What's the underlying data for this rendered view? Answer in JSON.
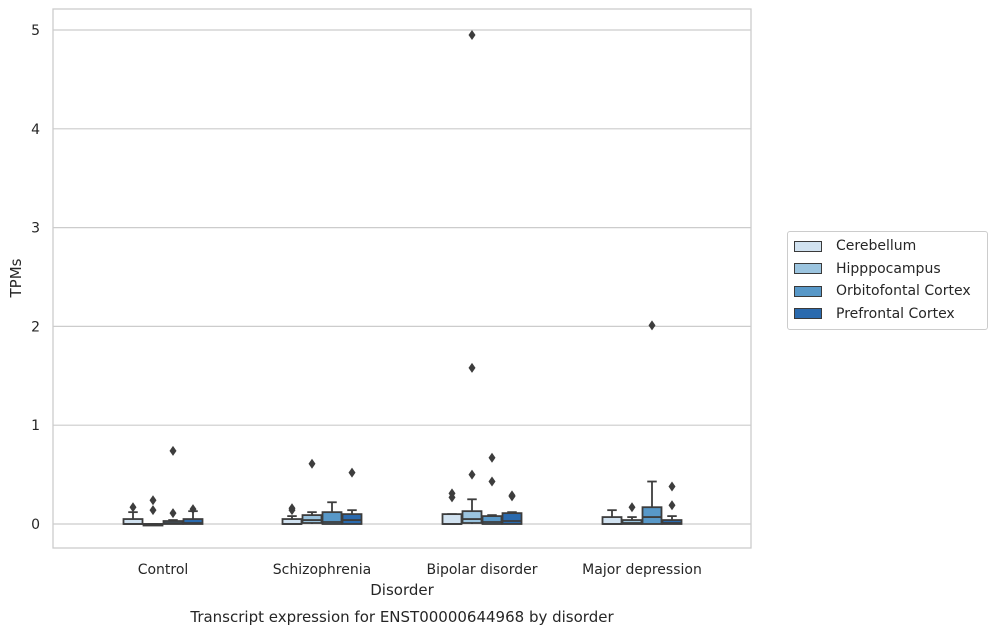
{
  "caption": "Transcript expression for ENST00000644968 by disorder",
  "chart_data": {
    "type": "box",
    "xlabel": "Disorder",
    "ylabel": "TPMs",
    "ylim": [
      -0.24,
      5.2
    ],
    "yticks": [
      0,
      1,
      2,
      3,
      4,
      5
    ],
    "grid": true,
    "legend_position": "right",
    "categories": [
      "Control",
      "Schizophrenia",
      "Bipolar disorder",
      "Major depression"
    ],
    "series": [
      {
        "name": "Cerebellum",
        "color": "#d1e2f0",
        "boxes": [
          {
            "whisker_low": 0,
            "q1": 0,
            "median": 0,
            "q3": 0.05,
            "whisker_high": 0.12,
            "outliers": [
              0.17
            ]
          },
          {
            "whisker_low": 0,
            "q1": 0,
            "median": 0,
            "q3": 0.05,
            "whisker_high": 0.08,
            "outliers": [
              0.14,
              0.16
            ]
          },
          {
            "whisker_low": 0,
            "q1": 0,
            "median": 0,
            "q3": 0.1,
            "whisker_high": 0.1,
            "outliers": [
              0.27,
              0.31
            ]
          },
          {
            "whisker_low": 0,
            "q1": 0,
            "median": 0,
            "q3": 0.07,
            "whisker_high": 0.14,
            "outliers": []
          }
        ]
      },
      {
        "name": "Hipppocampus",
        "color": "#9bc4df",
        "boxes": [
          {
            "whisker_low": 0,
            "q1": 0,
            "median": 0,
            "q3": 0,
            "whisker_high": 0,
            "outliers": [
              0.14,
              0.24
            ]
          },
          {
            "whisker_low": 0,
            "q1": 0.01,
            "median": 0.04,
            "q3": 0.09,
            "whisker_high": 0.12,
            "outliers": [
              0.61
            ]
          },
          {
            "whisker_low": 0,
            "q1": 0.01,
            "median": 0.05,
            "q3": 0.13,
            "whisker_high": 0.25,
            "outliers": [
              0.5,
              1.58,
              4.95
            ]
          },
          {
            "whisker_low": 0,
            "q1": 0,
            "median": 0.01,
            "q3": 0.04,
            "whisker_high": 0.07,
            "outliers": [
              0.17
            ]
          }
        ]
      },
      {
        "name": "Orbitofontal Cortex",
        "color": "#5898c8",
        "boxes": [
          {
            "whisker_low": 0,
            "q1": 0,
            "median": 0.01,
            "q3": 0.03,
            "whisker_high": 0.04,
            "outliers": [
              0.11,
              0.74
            ]
          },
          {
            "whisker_low": 0,
            "q1": 0,
            "median": 0.02,
            "q3": 0.12,
            "whisker_high": 0.22,
            "outliers": []
          },
          {
            "whisker_low": 0,
            "q1": 0,
            "median": 0.02,
            "q3": 0.08,
            "whisker_high": 0.09,
            "outliers": [
              0.43,
              0.67
            ]
          },
          {
            "whisker_low": 0,
            "q1": 0,
            "median": 0.07,
            "q3": 0.17,
            "whisker_high": 0.43,
            "outliers": [
              2.01
            ]
          }
        ]
      },
      {
        "name": "Prefrontal Cortex",
        "color": "#2a6aae",
        "boxes": [
          {
            "whisker_low": 0,
            "q1": 0,
            "median": 0.01,
            "q3": 0.05,
            "whisker_high": 0.13,
            "outliers": [
              0.15
            ]
          },
          {
            "whisker_low": 0,
            "q1": 0,
            "median": 0.04,
            "q3": 0.1,
            "whisker_high": 0.14,
            "outliers": [
              0.52
            ]
          },
          {
            "whisker_low": 0,
            "q1": 0,
            "median": 0.03,
            "q3": 0.11,
            "whisker_high": 0.12,
            "outliers": [
              0.28,
              0.29
            ]
          },
          {
            "whisker_low": 0,
            "q1": 0,
            "median": 0.01,
            "q3": 0.04,
            "whisker_high": 0.08,
            "outliers": [
              0.19,
              0.38
            ]
          }
        ]
      }
    ]
  }
}
